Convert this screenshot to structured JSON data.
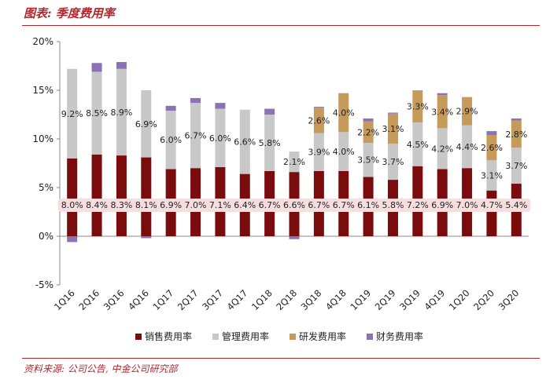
{
  "title": "图表: 季度费用率",
  "source": "资料来源: 公司公告, 中金公司研究部",
  "chart_data": {
    "type": "bar",
    "stacked": true,
    "categories": [
      "1Q16",
      "2Q16",
      "3Q16",
      "4Q16",
      "1Q17",
      "2Q17",
      "3Q17",
      "4Q17",
      "1Q18",
      "2Q18",
      "3Q18",
      "4Q18",
      "1Q19",
      "2Q19",
      "3Q19",
      "4Q19",
      "1Q20",
      "2Q20",
      "3Q20"
    ],
    "ylim": [
      -5,
      20
    ],
    "yticks": [
      -5,
      0,
      5,
      10,
      15,
      20
    ],
    "ytick_labels": [
      "-5%",
      "0%",
      "5%",
      "10%",
      "15%",
      "20%"
    ],
    "series": [
      {
        "name": "销售费用率",
        "color": "#7a0c0e",
        "values": [
          8.0,
          8.4,
          8.3,
          8.1,
          6.9,
          7.0,
          7.1,
          6.4,
          6.7,
          6.6,
          6.7,
          6.7,
          6.1,
          5.8,
          7.2,
          6.9,
          7.0,
          4.7,
          5.4
        ],
        "labels": [
          "8.0%",
          "8.4%",
          "8.3%",
          "8.1%",
          "6.9%",
          "7.0%",
          "7.1%",
          "6.4%",
          "6.7%",
          "6.6%",
          "6.7%",
          "6.7%",
          "6.1%",
          "5.8%",
          "7.2%",
          "6.9%",
          "7.0%",
          "4.7%",
          "5.4%"
        ]
      },
      {
        "name": "管理费用率",
        "color": "#c8c8c8",
        "values": [
          9.2,
          8.5,
          8.9,
          6.9,
          6.0,
          6.7,
          6.0,
          6.6,
          5.8,
          2.1,
          3.9,
          4.0,
          3.5,
          3.7,
          4.5,
          4.2,
          4.4,
          3.1,
          3.7
        ],
        "labels": [
          "9.2%",
          "8.5%",
          "8.9%",
          "6.9%",
          "6.0%",
          "6.7%",
          "6.0%",
          "6.6%",
          "5.8%",
          "2.1%",
          "3.9%",
          "4.0%",
          "3.5%",
          "3.7%",
          "4.5%",
          "4.2%",
          "4.4%",
          "3.1%",
          "3.7%"
        ]
      },
      {
        "name": "研发费用率",
        "color": "#c59a5b",
        "values": [
          0,
          0,
          0,
          0,
          0,
          0,
          0,
          0,
          0,
          0,
          2.6,
          4.0,
          2.2,
          3.1,
          3.3,
          3.4,
          2.9,
          2.6,
          2.8
        ],
        "labels": [
          "",
          "",
          "",
          "",
          "",
          "",
          "",
          "",
          "",
          "",
          "2.6%",
          "4.0%",
          "2.2%",
          "3.1%",
          "3.3%",
          "3.4%",
          "2.9%",
          "2.6%",
          "2.8%"
        ]
      },
      {
        "name": "财务费用率",
        "color": "#8b72b5",
        "values": [
          -0.6,
          0.9,
          0.7,
          -0.2,
          0.5,
          0.5,
          0.6,
          0,
          0.6,
          -0.3,
          0.1,
          0,
          0.3,
          0.1,
          0,
          0.2,
          0,
          0.4,
          0.2
        ],
        "labels": [
          "",
          "",
          "",
          "",
          "",
          "",
          "",
          "",
          "",
          "",
          "",
          "",
          "",
          "",
          "",
          "",
          "",
          "",
          ""
        ]
      }
    ]
  }
}
